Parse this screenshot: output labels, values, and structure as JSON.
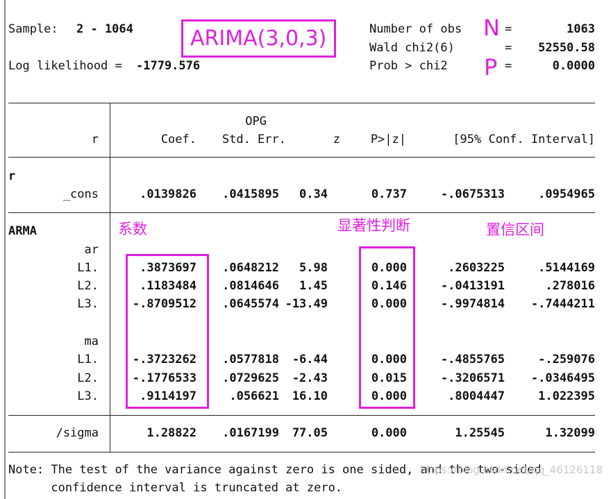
{
  "header": {
    "sample_label": "Sample:",
    "sample_value": "2 - 1064",
    "loglik_label": "Log likelihood =",
    "loglik_value": "-1779.576",
    "stats": [
      {
        "label": "Number of obs",
        "eq": "=",
        "value": "1063"
      },
      {
        "label": "Wald chi2(6)",
        "eq": "=",
        "value": "52550.58"
      },
      {
        "label": "Prob > chi2",
        "eq": "=",
        "value": "0.0000"
      }
    ]
  },
  "annotations": {
    "model": "ARIMA(3,0,3)",
    "n": "N",
    "p": "P",
    "coef": "系数",
    "significance": "显著性判断",
    "interval": "置信区间"
  },
  "table": {
    "columns": {
      "dep": "r",
      "coef": "Coef.",
      "opg": "OPG",
      "se": "Std. Err.",
      "z": "z",
      "p": "P>|z|",
      "ci": "[95% Conf. Interval]"
    },
    "sections": [
      {
        "title": "r",
        "groups": [
          {
            "rows": [
              {
                "label": "_cons",
                "cells": [
                  ".0139826",
                  ".0415895",
                  "0.34",
                  "0.737",
                  "-.0675313",
                  ".0954965"
                ]
              }
            ]
          }
        ]
      },
      {
        "title": "ARMA",
        "groups": [
          {
            "title": "ar",
            "rows": [
              {
                "label": "L1.",
                "cells": [
                  ".3873697",
                  ".0648212",
                  "5.98",
                  "0.000",
                  ".2603225",
                  ".5144169"
                ]
              },
              {
                "label": "L2.",
                "cells": [
                  ".1183484",
                  ".0814646",
                  "1.45",
                  "0.146",
                  "-.0413191",
                  ".278016"
                ]
              },
              {
                "label": "L3.",
                "cells": [
                  "-.8709512",
                  ".0645574",
                  "-13.49",
                  "0.000",
                  "-.9974814",
                  "-.7444211"
                ]
              }
            ]
          },
          {
            "title": "ma",
            "rows": [
              {
                "label": "L1.",
                "cells": [
                  "-.3723262",
                  ".0577818",
                  "-6.44",
                  "0.000",
                  "-.4855765",
                  "-.259076"
                ]
              },
              {
                "label": "L2.",
                "cells": [
                  "-.1776533",
                  ".0729625",
                  "-2.43",
                  "0.015",
                  "-.3206571",
                  "-.0346495"
                ]
              },
              {
                "label": "L3.",
                "cells": [
                  ".9114197",
                  ".056621",
                  "16.10",
                  "0.000",
                  ".8004447",
                  "1.022395"
                ]
              }
            ]
          }
        ]
      }
    ],
    "sigma": {
      "label": "/sigma",
      "cells": [
        "1.28822",
        ".0167199",
        "77.05",
        "0.000",
        "1.25545",
        "1.32099"
      ]
    }
  },
  "note": [
    "Note: The test of the variance against zero is one sided, and the two-sided",
    "      confidence interval is truncated at zero."
  ],
  "watermark": "https://blog.csdn.net/qq_46126118"
}
